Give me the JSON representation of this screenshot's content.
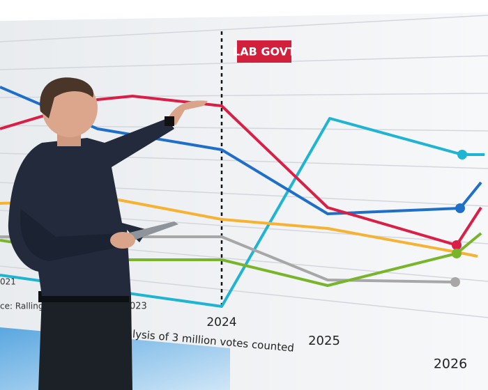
{
  "screen": {
    "badge": "LAB GOVT",
    "year_labels": [
      "2024",
      "2025",
      "2026",
      "021",
      "023"
    ],
    "source_text": "ce: Rallings",
    "footnote": "lysis of 3 million votes counted"
  }
}
